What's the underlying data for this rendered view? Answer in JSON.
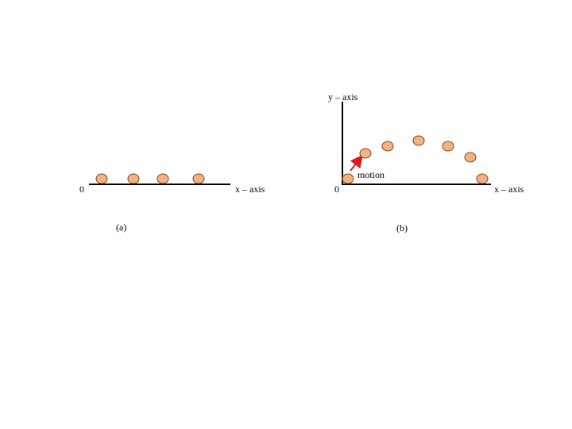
{
  "colors": {
    "ball_fill": "#f4b183",
    "ball_stroke": "#7a4a1a",
    "axis": "#000000",
    "arrow": "#e0191c"
  },
  "panel_a": {
    "origin_label": "0",
    "x_axis_label": "x – axis",
    "caption": "(a)",
    "ball_count": 4
  },
  "panel_b": {
    "origin_label": "0",
    "x_axis_label": "x – axis",
    "y_axis_label": "y – axis",
    "motion_label": "motion",
    "caption": "(b)",
    "ball_count": 7
  }
}
